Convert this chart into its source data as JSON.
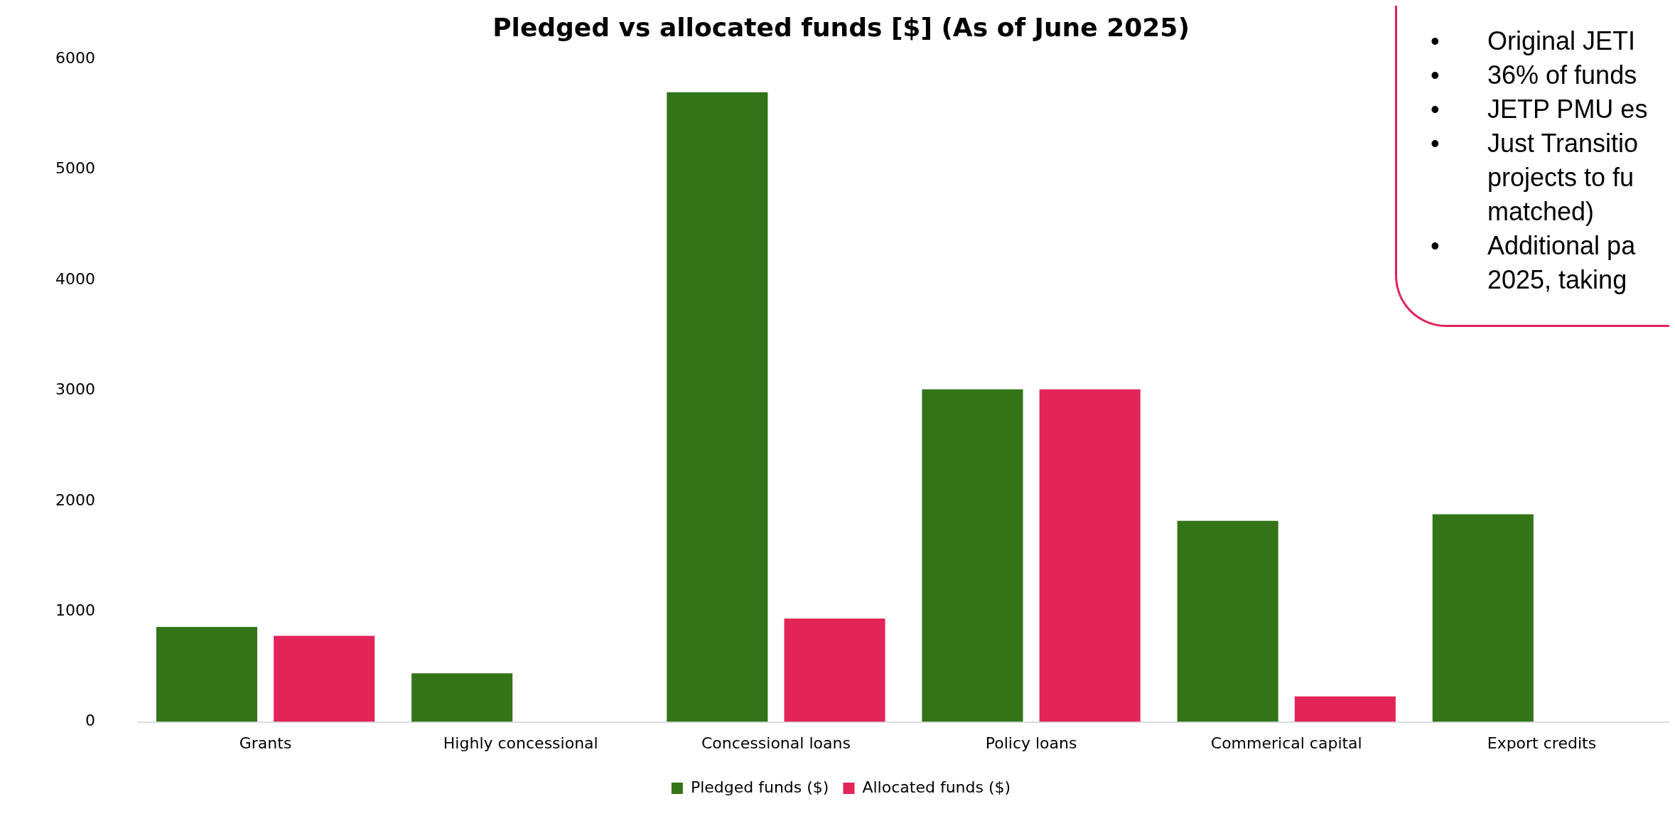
{
  "chart_data": {
    "type": "bar",
    "title": "Pledged vs allocated funds [$] (As of June 2025)",
    "categories": [
      "Grants",
      "Highly concessional",
      "Concessional loans",
      "Policy loans",
      "Commerical capital",
      "Export credits"
    ],
    "series": [
      {
        "name": "Pledged funds ($)",
        "color": "#337418",
        "values": [
          860,
          440,
          5700,
          3010,
          1820,
          1880
        ]
      },
      {
        "name": "Allocated funds ($)",
        "color": "#e32457",
        "values": [
          780,
          null,
          935,
          3010,
          230,
          null
        ]
      }
    ],
    "ylim": [
      0,
      6000
    ],
    "yticks": [
      0,
      1000,
      2000,
      3000,
      4000,
      5000,
      6000
    ],
    "grid": false,
    "legend": "bottom",
    "annotations": [
      "•\tOriginal JETI",
      "•\t36% of funds",
      "•\tJETP PMU es",
      "•\tJust Transitio",
      "projects to fu",
      "matched)",
      "•\tAdditional pa",
      "2025, taking"
    ]
  }
}
